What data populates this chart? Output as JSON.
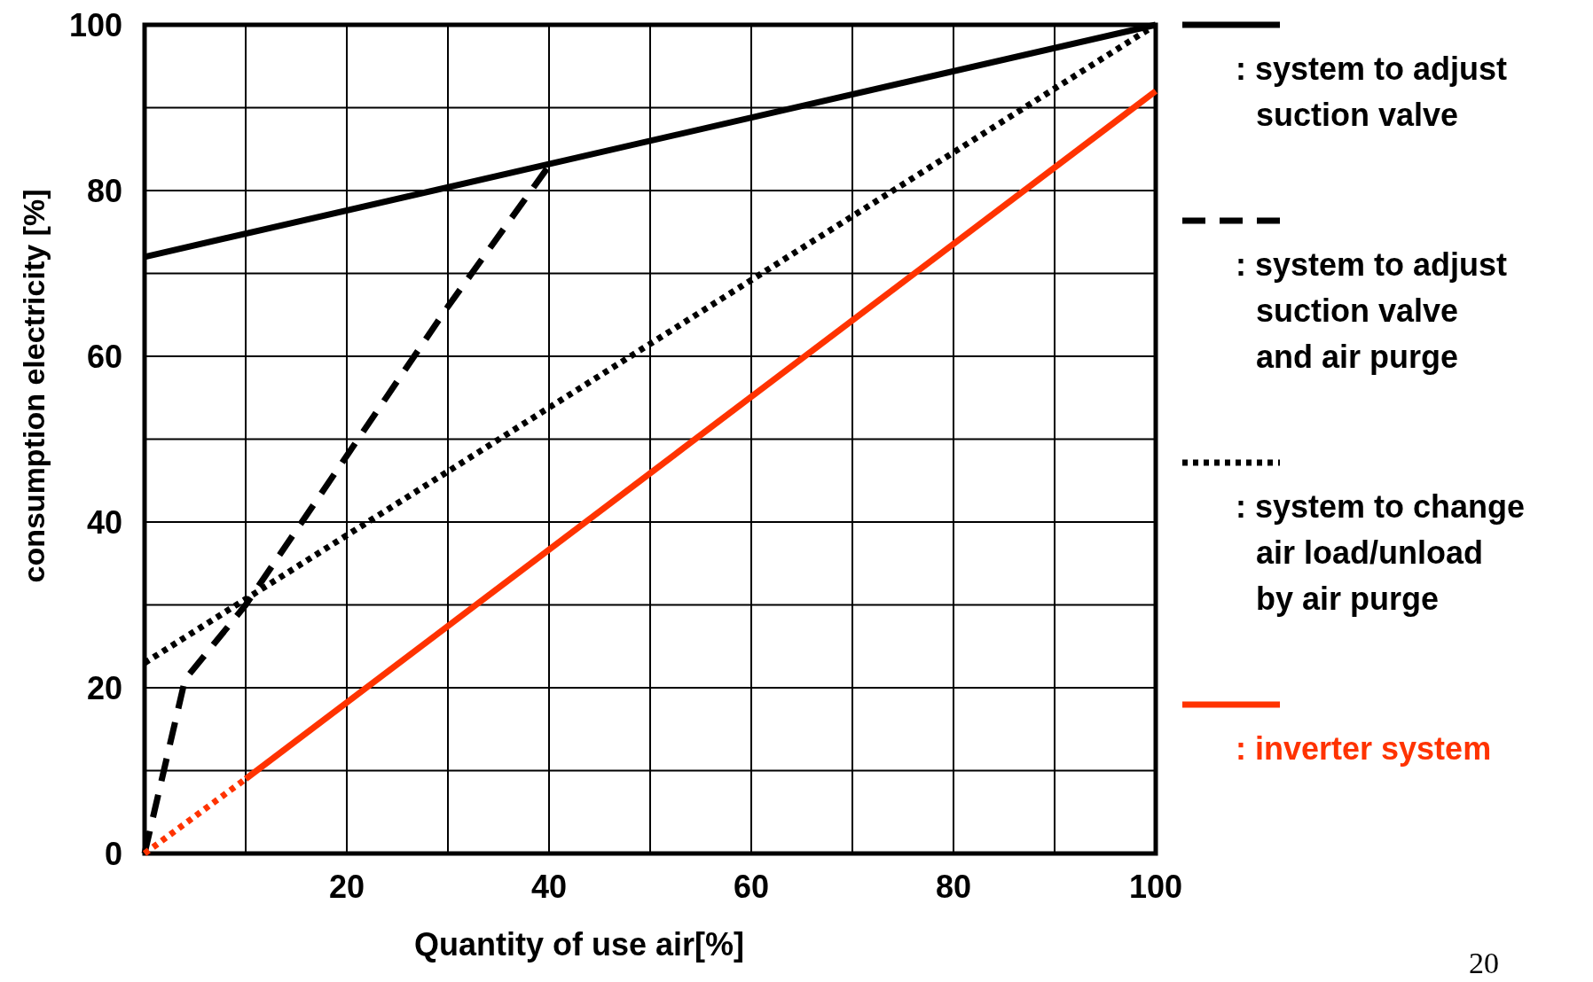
{
  "chart_data": {
    "type": "line",
    "xlabel": "Quantity of use air[%]",
    "ylabel": "consumption electricity [%]",
    "xlim": [
      0,
      100
    ],
    "ylim": [
      0,
      100
    ],
    "xticks": [
      {
        "value": 0,
        "label": null
      },
      {
        "value": 10,
        "label": null
      },
      20,
      {
        "value": 30,
        "label": null
      },
      40,
      {
        "value": 50,
        "label": null
      },
      60,
      {
        "value": 70,
        "label": null
      },
      80,
      {
        "value": 90,
        "label": null
      },
      100
    ],
    "yticks": [
      0,
      {
        "value": 10,
        "label": null
      },
      20,
      {
        "value": 30,
        "label": null
      },
      40,
      {
        "value": 50,
        "label": null
      },
      60,
      {
        "value": 70,
        "label": null
      },
      80,
      {
        "value": 90,
        "label": null
      },
      100
    ],
    "grid": true,
    "legend": "right",
    "series": [
      {
        "name": ": system to adjust\nsuction valve",
        "color": "#000000",
        "line_style": "solid",
        "x": [
          0,
          100
        ],
        "values": [
          72,
          100
        ]
      },
      {
        "name": ": system to adjust\nsuction valve\nand air purge",
        "color": "#000000",
        "line_style": "dashed",
        "x": [
          0,
          4,
          10,
          20,
          30,
          40
        ],
        "values": [
          0,
          21,
          30,
          48,
          66,
          83
        ]
      },
      {
        "name": ": system to change\nair load/unload\nby air purge",
        "color": "#000000",
        "line_style": "dotted",
        "x": [
          0,
          100
        ],
        "values": [
          23,
          100
        ]
      },
      {
        "name": ": inverter system",
        "color": "#ff3300",
        "line_style": "solid",
        "x": [
          10,
          100
        ],
        "values": [
          9,
          92
        ]
      },
      {
        "color": "#ff3300",
        "line_style": "dotted",
        "x": [
          0,
          10
        ],
        "values": [
          0,
          9
        ]
      }
    ],
    "annotations": [
      "20"
    ]
  }
}
